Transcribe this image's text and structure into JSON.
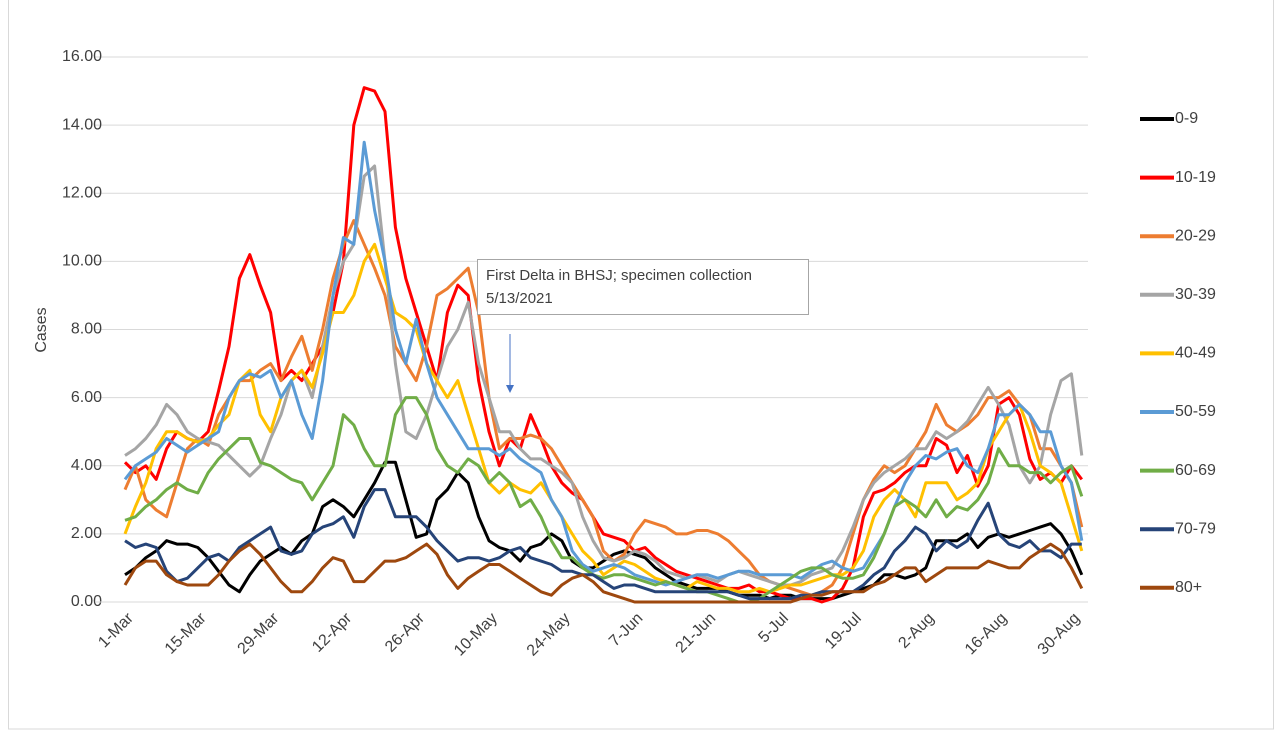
{
  "chart_data": {
    "type": "line",
    "y_label": "Cases",
    "annotation": "First Delta in BHSJ; specimen collection 5/13/2021",
    "categories": [
      "1-Mar",
      null,
      null,
      null,
      null,
      null,
      null,
      "15-Mar",
      null,
      null,
      null,
      null,
      null,
      null,
      "29-Mar",
      null,
      null,
      null,
      null,
      null,
      null,
      "12-Apr",
      null,
      null,
      null,
      null,
      null,
      null,
      "26-Apr",
      null,
      null,
      null,
      null,
      null,
      null,
      "10-May",
      null,
      null,
      null,
      null,
      null,
      null,
      "24-May",
      null,
      null,
      null,
      null,
      null,
      null,
      "7-Jun",
      null,
      null,
      null,
      null,
      null,
      null,
      "21-Jun",
      null,
      null,
      null,
      null,
      null,
      null,
      "5-Jul",
      null,
      null,
      null,
      null,
      null,
      null,
      "19-Jul",
      null,
      null,
      null,
      null,
      null,
      null,
      "2-Aug",
      null,
      null,
      null,
      null,
      null,
      null,
      "16-Aug",
      null,
      null,
      null,
      null,
      null,
      null,
      "30-Aug",
      null
    ],
    "ylim": [
      0,
      16
    ],
    "yticks": [
      {
        "value": 0,
        "label": "0.00"
      },
      {
        "value": 2,
        "label": "2.00"
      },
      {
        "value": 4,
        "label": "4.00"
      },
      {
        "value": 6,
        "label": "6.00"
      },
      {
        "value": 8,
        "label": "8.00"
      },
      {
        "value": 10,
        "label": "10.00"
      },
      {
        "value": 12,
        "label": "12.00"
      },
      {
        "value": 14,
        "label": "14.00"
      },
      {
        "value": 16,
        "label": "16.00"
      }
    ],
    "grid": true,
    "legend": "right",
    "series": [
      {
        "name": "0-9",
        "color": "#000000",
        "values": [
          0.8,
          1.0,
          1.3,
          1.5,
          1.8,
          1.7,
          1.7,
          1.6,
          1.3,
          0.9,
          0.5,
          0.3,
          0.8,
          1.2,
          1.4,
          1.6,
          1.4,
          1.8,
          2.0,
          2.8,
          3.0,
          2.8,
          2.5,
          3.0,
          3.5,
          4.1,
          4.1,
          3.0,
          1.9,
          2.0,
          3.0,
          3.3,
          3.8,
          3.5,
          2.5,
          1.8,
          1.6,
          1.5,
          1.2,
          1.6,
          1.7,
          2.0,
          1.8,
          1.2,
          1.0,
          1.0,
          1.2,
          1.4,
          1.5,
          1.4,
          1.3,
          1.0,
          0.8,
          0.6,
          0.5,
          0.4,
          0.4,
          0.4,
          0.3,
          0.2,
          0.2,
          0.2,
          0.1,
          0.2,
          0.2,
          0.1,
          0.1,
          0.1,
          0.1,
          0.2,
          0.3,
          0.4,
          0.5,
          0.8,
          0.8,
          0.7,
          0.8,
          1.0,
          1.8,
          1.8,
          1.8,
          2.0,
          1.6,
          1.9,
          2.0,
          1.9,
          2.0,
          2.1,
          2.2,
          2.3,
          2.0,
          1.5,
          0.8
        ]
      },
      {
        "name": "10-19",
        "color": "#ff0000",
        "values": [
          4.1,
          3.8,
          4.0,
          3.6,
          4.5,
          5.0,
          4.8,
          4.7,
          5.0,
          6.2,
          7.5,
          9.5,
          10.2,
          9.3,
          8.5,
          6.5,
          6.8,
          6.5,
          7.0,
          7.5,
          8.5,
          10.0,
          14.0,
          15.1,
          15.0,
          14.4,
          11.0,
          9.5,
          8.5,
          7.5,
          6.5,
          8.5,
          9.3,
          9.0,
          6.5,
          5.0,
          4.0,
          4.8,
          4.5,
          5.5,
          4.8,
          4.0,
          3.5,
          3.2,
          3.0,
          2.5,
          2.0,
          1.9,
          1.8,
          1.5,
          1.6,
          1.3,
          1.1,
          0.9,
          0.8,
          0.7,
          0.6,
          0.5,
          0.4,
          0.4,
          0.5,
          0.3,
          0.3,
          0.2,
          0.1,
          0.1,
          0.1,
          0.0,
          0.1,
          0.4,
          1.0,
          2.5,
          3.2,
          3.3,
          3.5,
          3.8,
          4.0,
          4.0,
          4.8,
          4.6,
          3.8,
          4.3,
          3.4,
          4.0,
          5.8,
          6.0,
          5.5,
          4.2,
          3.6,
          3.8,
          3.5,
          4.0,
          3.6
        ]
      },
      {
        "name": "20-29",
        "color": "#ed7d31",
        "values": [
          3.3,
          4.0,
          3.0,
          2.7,
          2.5,
          3.5,
          4.5,
          4.8,
          4.6,
          5.5,
          6.0,
          6.5,
          6.5,
          6.8,
          7.0,
          6.5,
          7.2,
          7.8,
          6.8,
          8.0,
          9.5,
          10.5,
          11.2,
          10.5,
          9.8,
          9.0,
          7.5,
          7.0,
          6.5,
          7.5,
          9.0,
          9.2,
          9.5,
          9.8,
          8.5,
          6.0,
          4.5,
          4.8,
          4.8,
          4.9,
          4.8,
          4.5,
          4.0,
          3.5,
          3.0,
          2.5,
          1.5,
          1.2,
          1.4,
          2.0,
          2.4,
          2.3,
          2.2,
          2.0,
          2.0,
          2.1,
          2.1,
          2.0,
          1.8,
          1.5,
          1.2,
          0.8,
          0.6,
          0.5,
          0.4,
          0.3,
          0.2,
          0.3,
          0.5,
          1.0,
          2.0,
          3.0,
          3.6,
          4.0,
          3.8,
          4.0,
          4.5,
          5.0,
          5.8,
          5.2,
          5.0,
          5.2,
          5.5,
          6.0,
          6.0,
          6.2,
          5.8,
          5.5,
          4.5,
          4.5,
          4.0,
          3.5,
          2.2
        ]
      },
      {
        "name": "30-39",
        "color": "#a5a5a5",
        "values": [
          4.3,
          4.5,
          4.8,
          5.2,
          5.8,
          5.5,
          5.0,
          4.8,
          4.7,
          4.6,
          4.3,
          4.0,
          3.7,
          4.0,
          4.8,
          5.5,
          6.5,
          6.8,
          6.0,
          7.5,
          9.0,
          10.0,
          10.5,
          12.5,
          12.8,
          10.0,
          7.0,
          5.0,
          4.8,
          5.5,
          6.5,
          7.5,
          8.0,
          8.8,
          7.0,
          6.0,
          5.0,
          5.0,
          4.5,
          4.2,
          4.2,
          4.0,
          3.8,
          3.5,
          2.5,
          1.8,
          1.3,
          1.2,
          1.3,
          1.5,
          1.4,
          1.2,
          0.9,
          0.8,
          0.7,
          0.8,
          0.7,
          0.6,
          0.8,
          0.9,
          0.8,
          0.7,
          0.6,
          0.5,
          0.5,
          0.6,
          0.8,
          0.9,
          1.0,
          1.5,
          2.2,
          3.0,
          3.5,
          3.8,
          4.0,
          4.2,
          4.5,
          4.5,
          5.0,
          4.8,
          5.0,
          5.3,
          5.8,
          6.3,
          5.8,
          5.2,
          4.0,
          3.5,
          4.0,
          5.5,
          6.5,
          6.7,
          4.3
        ]
      },
      {
        "name": "40-49",
        "color": "#ffc000",
        "values": [
          2.0,
          2.8,
          3.5,
          4.5,
          5.0,
          5.0,
          4.8,
          4.7,
          4.8,
          5.2,
          5.5,
          6.5,
          6.8,
          5.5,
          5.0,
          6.0,
          6.5,
          6.8,
          6.3,
          7.3,
          8.5,
          8.5,
          9.0,
          10.0,
          10.5,
          9.5,
          8.5,
          8.3,
          8.0,
          7.0,
          6.5,
          6.0,
          6.5,
          5.5,
          4.5,
          3.5,
          3.2,
          3.5,
          3.3,
          3.2,
          3.5,
          3.0,
          2.5,
          2.0,
          1.5,
          1.2,
          0.8,
          1.0,
          1.2,
          1.1,
          0.9,
          0.7,
          0.6,
          0.5,
          0.4,
          0.6,
          0.5,
          0.4,
          0.4,
          0.3,
          0.3,
          0.4,
          0.3,
          0.4,
          0.5,
          0.5,
          0.6,
          0.7,
          0.8,
          0.8,
          1.0,
          1.5,
          2.5,
          3.0,
          3.3,
          3.0,
          2.5,
          3.5,
          3.5,
          3.5,
          3.0,
          3.2,
          3.5,
          4.5,
          5.0,
          5.5,
          5.8,
          5.0,
          4.0,
          3.8,
          3.5,
          2.5,
          1.5
        ]
      },
      {
        "name": "50-59",
        "color": "#5b9bd5",
        "values": [
          3.6,
          4.0,
          4.2,
          4.4,
          4.8,
          4.6,
          4.4,
          4.6,
          4.8,
          5.0,
          6.0,
          6.5,
          6.7,
          6.6,
          6.8,
          6.0,
          6.5,
          5.5,
          4.8,
          6.5,
          9.0,
          10.7,
          10.5,
          13.5,
          11.5,
          10.0,
          8.0,
          7.0,
          8.3,
          7.0,
          6.0,
          5.5,
          5.0,
          4.5,
          4.5,
          4.5,
          4.3,
          4.5,
          4.2,
          4.0,
          3.8,
          3.0,
          2.5,
          1.5,
          1.1,
          0.9,
          1.0,
          1.1,
          1.0,
          0.8,
          0.7,
          0.6,
          0.5,
          0.6,
          0.7,
          0.8,
          0.8,
          0.7,
          0.8,
          0.9,
          0.9,
          0.8,
          0.8,
          0.8,
          0.8,
          0.7,
          0.9,
          1.1,
          1.2,
          1.0,
          0.9,
          1.0,
          1.5,
          2.0,
          2.8,
          3.5,
          4.0,
          4.3,
          4.2,
          4.4,
          4.5,
          4.0,
          3.8,
          4.5,
          5.5,
          5.5,
          5.8,
          5.5,
          5.0,
          5.0,
          4.0,
          3.5,
          1.8
        ]
      },
      {
        "name": "60-69",
        "color": "#70ad47",
        "values": [
          2.4,
          2.5,
          2.8,
          3.0,
          3.3,
          3.5,
          3.3,
          3.2,
          3.8,
          4.2,
          4.5,
          4.8,
          4.8,
          4.1,
          4.0,
          3.8,
          3.6,
          3.5,
          3.0,
          3.5,
          4.0,
          5.5,
          5.2,
          4.5,
          4.0,
          4.0,
          5.5,
          6.0,
          6.0,
          5.5,
          4.5,
          4.0,
          3.8,
          4.2,
          4.0,
          3.5,
          3.8,
          3.5,
          2.8,
          3.0,
          2.5,
          1.8,
          1.3,
          1.3,
          1.0,
          0.8,
          0.7,
          0.8,
          0.8,
          0.7,
          0.6,
          0.5,
          0.6,
          0.5,
          0.4,
          0.3,
          0.3,
          0.2,
          0.1,
          0.0,
          0.0,
          0.1,
          0.3,
          0.5,
          0.7,
          0.9,
          1.0,
          1.0,
          0.8,
          0.7,
          0.7,
          0.8,
          1.3,
          2.0,
          2.8,
          3.0,
          2.8,
          2.5,
          3.0,
          2.5,
          2.8,
          2.7,
          3.0,
          3.5,
          4.5,
          4.0,
          4.0,
          3.8,
          3.8,
          3.5,
          3.8,
          4.0,
          3.1
        ]
      },
      {
        "name": "70-79",
        "color": "#264478",
        "values": [
          1.8,
          1.6,
          1.7,
          1.6,
          0.9,
          0.6,
          0.7,
          1.0,
          1.3,
          1.4,
          1.2,
          1.6,
          1.8,
          2.0,
          2.2,
          1.5,
          1.4,
          1.5,
          2.0,
          2.2,
          2.3,
          2.5,
          1.9,
          2.8,
          3.3,
          3.3,
          2.5,
          2.5,
          2.5,
          2.2,
          1.8,
          1.5,
          1.2,
          1.3,
          1.3,
          1.2,
          1.3,
          1.5,
          1.6,
          1.3,
          1.2,
          1.1,
          0.9,
          0.9,
          0.8,
          0.8,
          0.6,
          0.4,
          0.5,
          0.5,
          0.4,
          0.3,
          0.3,
          0.3,
          0.3,
          0.3,
          0.3,
          0.3,
          0.3,
          0.2,
          0.1,
          0.1,
          0.1,
          0.1,
          0.1,
          0.2,
          0.2,
          0.3,
          0.3,
          0.3,
          0.3,
          0.5,
          0.8,
          1.0,
          1.5,
          1.8,
          2.2,
          2.0,
          1.5,
          1.8,
          1.6,
          1.8,
          2.4,
          2.9,
          2.0,
          1.7,
          1.6,
          1.8,
          1.5,
          1.5,
          1.3,
          1.7,
          1.7
        ]
      },
      {
        "name": "80+",
        "color": "#9e480e",
        "values": [
          0.5,
          1.0,
          1.2,
          1.2,
          0.8,
          0.6,
          0.5,
          0.5,
          0.5,
          0.8,
          1.2,
          1.5,
          1.7,
          1.4,
          1.0,
          0.6,
          0.3,
          0.3,
          0.6,
          1.0,
          1.3,
          1.2,
          0.6,
          0.6,
          0.9,
          1.2,
          1.2,
          1.3,
          1.5,
          1.7,
          1.4,
          0.8,
          0.4,
          0.7,
          0.9,
          1.1,
          1.1,
          0.9,
          0.7,
          0.5,
          0.3,
          0.2,
          0.5,
          0.7,
          0.8,
          0.6,
          0.3,
          0.2,
          0.1,
          0.0,
          0.0,
          0.0,
          0.0,
          0.0,
          0.0,
          0.0,
          0.0,
          0.0,
          0.0,
          0.0,
          0.0,
          0.0,
          0.0,
          0.0,
          0.0,
          0.1,
          0.2,
          0.2,
          0.3,
          0.3,
          0.3,
          0.3,
          0.5,
          0.6,
          0.8,
          1.0,
          1.0,
          0.6,
          0.8,
          1.0,
          1.0,
          1.0,
          1.0,
          1.2,
          1.1,
          1.0,
          1.0,
          1.3,
          1.5,
          1.7,
          1.5,
          1.0,
          0.4
        ]
      }
    ]
  }
}
